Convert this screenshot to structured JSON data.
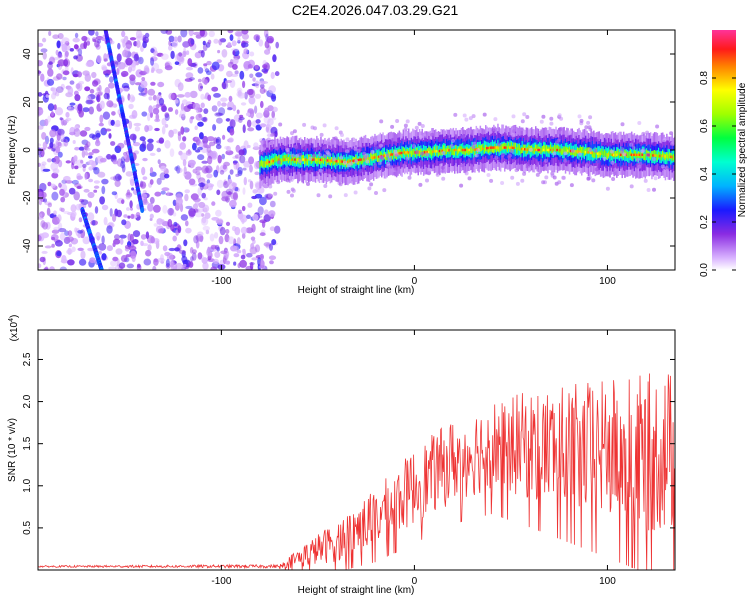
{
  "title": "C2E4.2026.047.03.29.G21",
  "chart_data": [
    {
      "type": "heatmap",
      "name": "spectrogram",
      "xlabel": "Height of straight line (km)",
      "ylabel": "Frequency (Hz)",
      "xlim": [
        -195,
        135
      ],
      "ylim": [
        -50,
        50
      ],
      "xticks": [
        -100,
        0,
        100
      ],
      "yticks": [
        -40,
        -20,
        0,
        20,
        40
      ],
      "colorbar": {
        "label": "Normalized spectral amplitude",
        "range": [
          0,
          1
        ],
        "ticks": [
          "0.0",
          "0.2",
          "0.4",
          "0.6",
          "0.8"
        ],
        "tick_values": [
          0,
          0.2,
          0.4,
          0.6,
          0.8
        ]
      },
      "noise_region_x": [
        -195,
        -75
      ],
      "ridge": {
        "x": [
          -80,
          -70,
          -50,
          -35,
          -20,
          -5,
          5,
          20,
          30,
          40,
          50,
          60,
          75,
          90,
          100,
          110,
          120,
          135
        ],
        "freq": [
          -6,
          -4,
          -4,
          -5,
          -3,
          -1,
          -1,
          0,
          0,
          1,
          1,
          0,
          0,
          -1,
          -2,
          -2,
          -2,
          -3
        ]
      },
      "streaks": [
        {
          "x_start": -160,
          "f_start": 50,
          "x_end": -141,
          "f_end": -25
        },
        {
          "x_start": -172,
          "f_start": -25,
          "x_end": -162,
          "f_end": -50
        }
      ]
    },
    {
      "type": "line",
      "name": "snr",
      "xlabel": "Height of straight line (km)",
      "ylabel": "SNR (10 * v/v)",
      "multiplier": "(x10",
      "multiplier_exp": "4",
      "multiplier_close": ")",
      "xlim": [
        -195,
        135
      ],
      "ylim": [
        0,
        2.85
      ],
      "xticks": [
        -100,
        0,
        100
      ],
      "yticks": [
        "0.5",
        "1.0",
        "1.5",
        "2.0",
        "2.5"
      ],
      "ytick_values": [
        0.5,
        1.0,
        1.5,
        2.0,
        2.5
      ],
      "color": "#ee3333",
      "envelope": {
        "x": [
          -195,
          -70,
          -60,
          -40,
          -20,
          0,
          20,
          40,
          60,
          80,
          100,
          120,
          135
        ],
        "baseline": [
          0.04,
          0.04,
          0.12,
          0.3,
          0.55,
          0.9,
          1.2,
          1.38,
          1.35,
          1.3,
          1.25,
          1.2,
          1.2
        ],
        "amplitude": [
          0.01,
          0.02,
          0.12,
          0.25,
          0.35,
          0.45,
          0.5,
          0.55,
          0.65,
          0.75,
          0.85,
          0.95,
          1.0
        ]
      }
    }
  ]
}
